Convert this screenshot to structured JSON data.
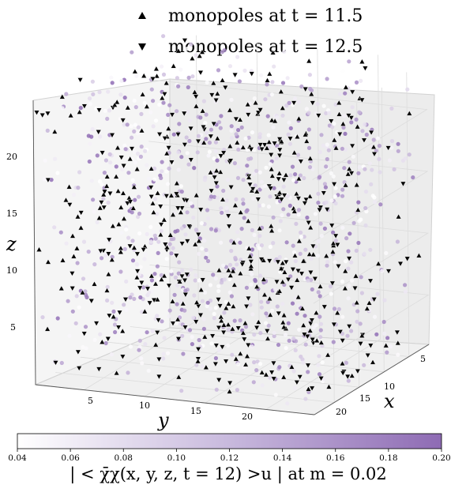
{
  "chart_data": {
    "type": "scatter",
    "legend": {
      "placement": "top-center",
      "entries": [
        {
          "name": "monopoles at t = 11.5",
          "marker": "triangle-up",
          "color": "#000000"
        },
        {
          "name": "monopoles at t = 12.5",
          "marker": "triangle-down",
          "color": "#000000"
        }
      ]
    },
    "axes": {
      "x": {
        "label": "x",
        "ticks": [
          "5",
          "10",
          "15",
          "20"
        ],
        "range": [
          1,
          24
        ]
      },
      "y": {
        "label": "y",
        "ticks": [
          "5",
          "10",
          "15",
          "20"
        ],
        "range": [
          1,
          24
        ]
      },
      "z": {
        "label": "z",
        "ticks": [
          "5",
          "10",
          "15",
          "20"
        ],
        "range": [
          1,
          24
        ]
      }
    },
    "grid": true,
    "colorbar": {
      "min": 0.04,
      "max": 0.2,
      "ticks": [
        "0.04",
        "0.06",
        "0.08",
        "0.10",
        "0.12",
        "0.14",
        "0.16",
        "0.18",
        "0.20"
      ],
      "label": "| < χ̄χ(x, y, z, t = 12) >u | at m = 0.02",
      "colors": [
        "#ffffff",
        "#8e6bb4"
      ]
    }
  }
}
